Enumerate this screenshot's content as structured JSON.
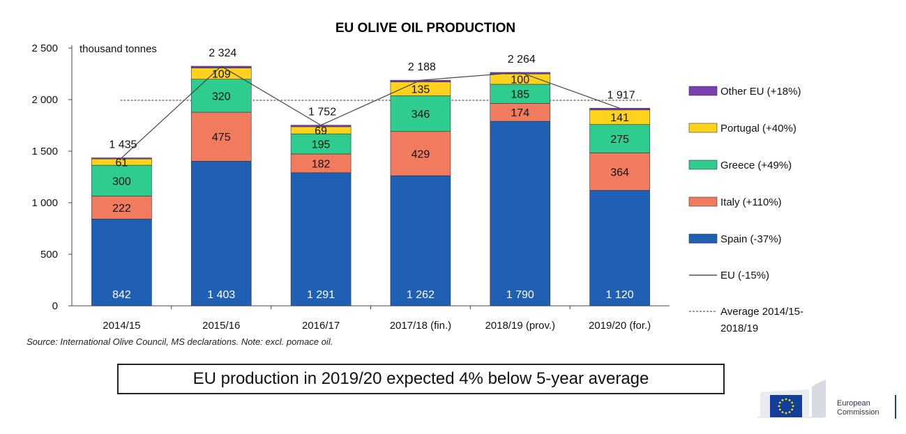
{
  "chart_data": {
    "type": "bar",
    "stacked": true,
    "title": "EU OLIVE OIL PRODUCTION",
    "unit_label": "thousand tonnes",
    "categories": [
      "2014/15",
      "2015/16",
      "2016/17",
      "2017/18 (fin.)",
      "2018/19 (prov.)",
      "2019/20 (for.)"
    ],
    "ylim": [
      0,
      2500
    ],
    "yticks": [
      0,
      500,
      1000,
      1500,
      2000,
      2500
    ],
    "ytick_labels": [
      "0",
      "500",
      "1 000",
      "1 500",
      "2 000",
      "2 500"
    ],
    "series": [
      {
        "name": "Spain (-37%)",
        "color": "#1f5fb4",
        "values": [
          842,
          1403,
          1291,
          1262,
          1790,
          1120
        ],
        "labels": [
          "842",
          "1 403",
          "1 291",
          "1 262",
          "1 790",
          "1 120"
        ]
      },
      {
        "name": "Italy (+110%)",
        "color": "#f07b5e",
        "values": [
          222,
          475,
          182,
          429,
          174,
          364
        ],
        "labels": [
          "222",
          "475",
          "182",
          "429",
          "174",
          "364"
        ]
      },
      {
        "name": "Greece (+49%)",
        "color": "#2ecc8e",
        "values": [
          300,
          320,
          195,
          346,
          185,
          275
        ],
        "labels": [
          "300",
          "320",
          "195",
          "346",
          "185",
          "275"
        ]
      },
      {
        "name": "Portugal (+40%)",
        "color": "#ffd21e",
        "values": [
          61,
          109,
          69,
          135,
          100,
          141
        ],
        "labels": [
          "61",
          "109",
          "69",
          "135",
          "100",
          "141"
        ]
      },
      {
        "name": "Other EU (+18%)",
        "color": "#7a3fb0",
        "values": [
          10,
          17,
          15,
          16,
          15,
          17
        ],
        "labels": [
          "",
          "",
          "",
          "",
          "",
          ""
        ]
      }
    ],
    "totals": {
      "name": "EU (-15%)",
      "values": [
        1435,
        2324,
        1752,
        2188,
        2264,
        1917
      ],
      "labels": [
        "1 435",
        "2 324",
        "1 752",
        "2 188",
        "2 264",
        "1 917"
      ]
    },
    "average": {
      "name": "Average 2014/15-2018/19",
      "value": 1993
    },
    "legend_position": "right"
  },
  "source": "Source: International Olive Council, MS declarations. Note: excl. pomace oil.",
  "callout": "EU production in 2019/20 expected 4% below 5-year average",
  "logo": {
    "line1": "European",
    "line2": "Commission"
  }
}
